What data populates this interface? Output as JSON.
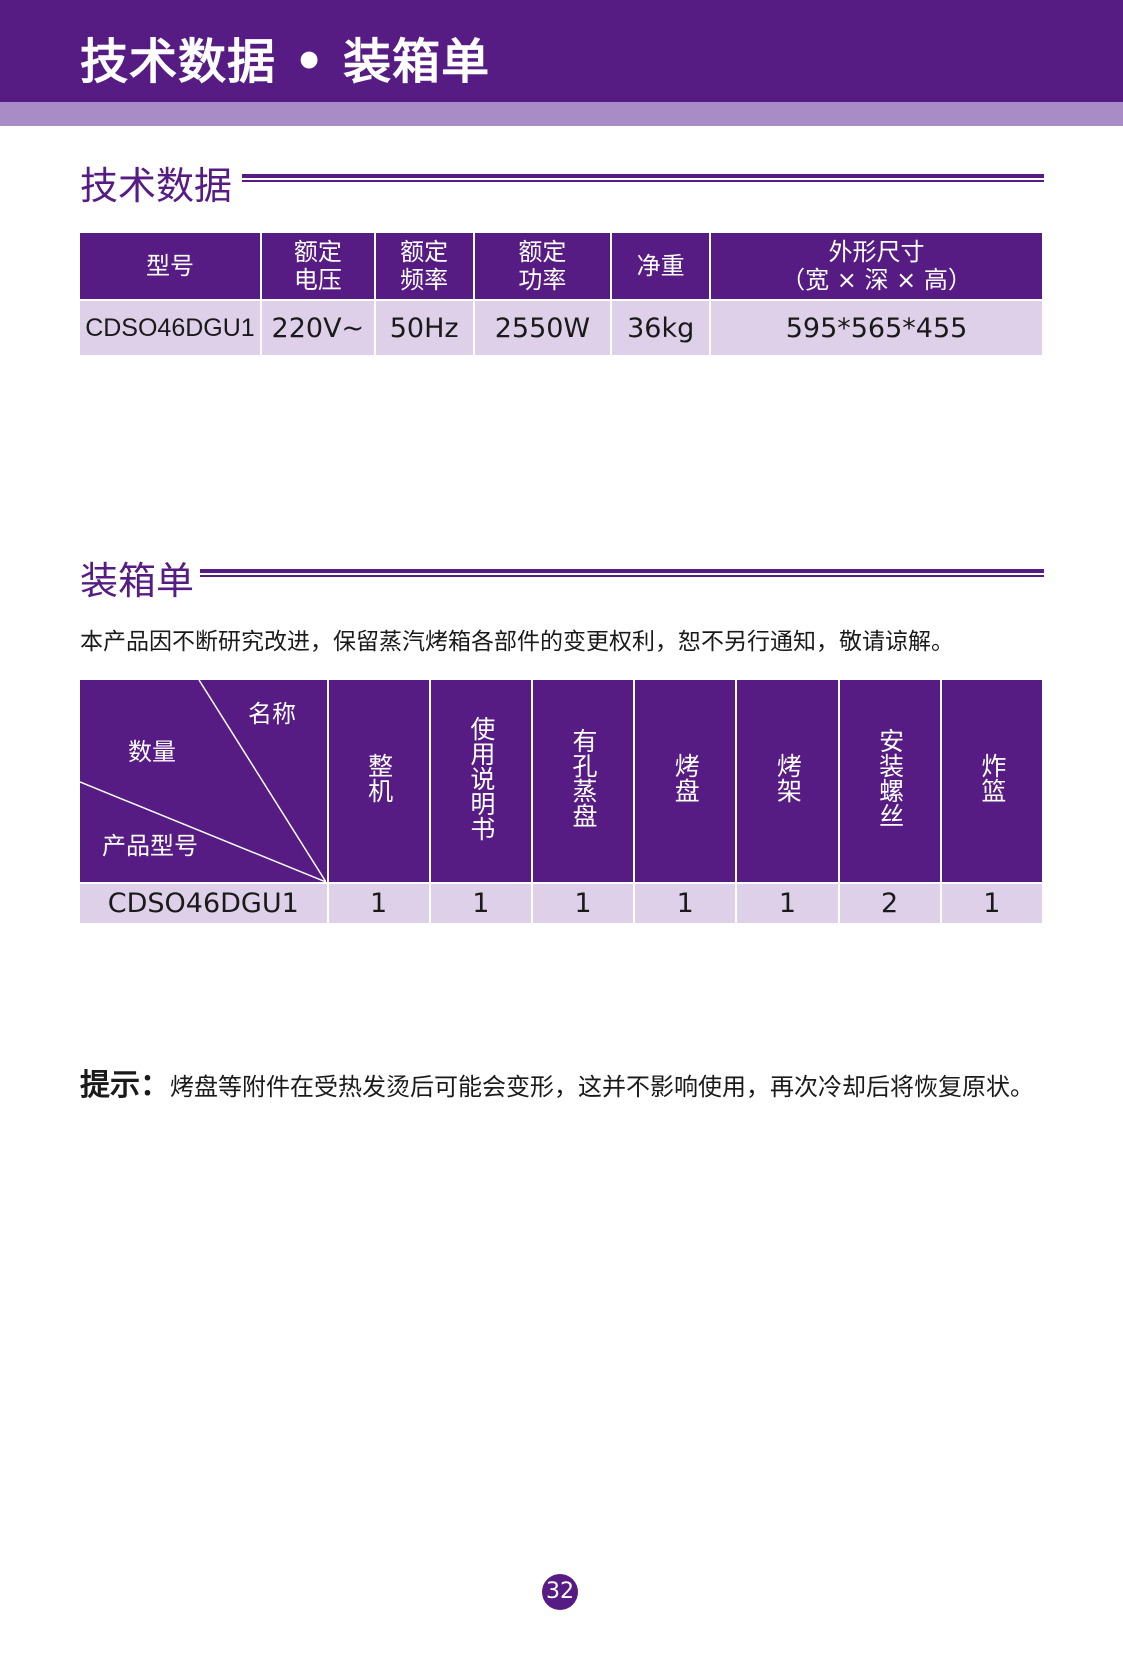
{
  "header": {
    "title": "技术数据 • 装箱单"
  },
  "spec_section": {
    "title": "技术数据",
    "columns": [
      [
        "型号"
      ],
      [
        "额定",
        "电压"
      ],
      [
        "额定",
        "频率"
      ],
      [
        "额定",
        "功率"
      ],
      [
        "净重"
      ],
      [
        "外形尺寸",
        "（宽 × 深 × 高）"
      ]
    ],
    "row": [
      "CDSO46DGU1",
      "220V~",
      "50Hz",
      "2550W",
      "36kg",
      "595*565*455"
    ]
  },
  "packing_section": {
    "title": "装箱单",
    "notice": "本产品因不断研究改进，保留蒸汽烤箱各部件的变更权利，恕不另行通知，敬请谅解。",
    "corner": {
      "name": "名称",
      "quantity": "数量",
      "model": "产品型号"
    },
    "items": [
      "整机",
      "使用说明书",
      "有孔蒸盘",
      "烤盘",
      "烤架",
      "安装螺丝",
      "炸篮"
    ],
    "row": {
      "model": "CDSO46DGU1",
      "quantities": [
        "1",
        "1",
        "1",
        "1",
        "1",
        "2",
        "1"
      ]
    }
  },
  "tip": {
    "label": "提示：",
    "text": "烤盘等附件在受热发烫后可能会变形，这并不影响使用，再次冷却后将恢复原状。"
  },
  "page_number": "32",
  "colors": {
    "brand_purple": "#561c83",
    "stripe": "#a98bc5",
    "cell_fill": "#dfd0ea"
  }
}
